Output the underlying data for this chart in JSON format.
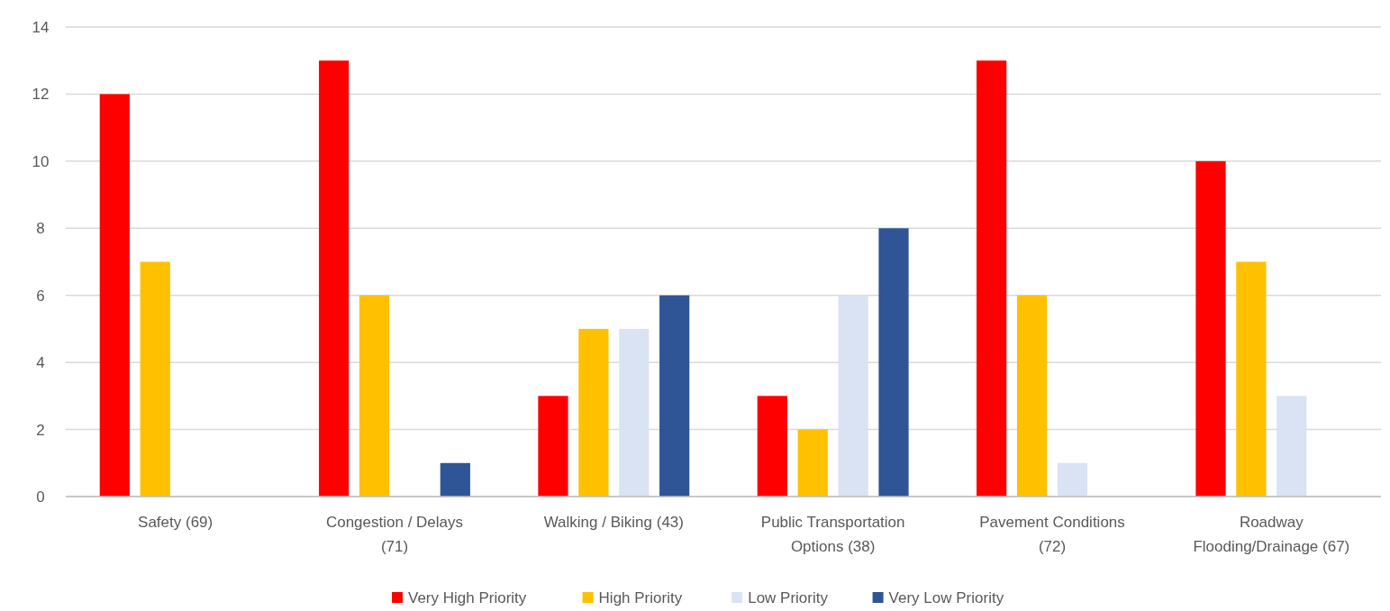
{
  "chart_data": {
    "type": "bar",
    "categories": [
      "Safety (69)",
      "Congestion / Delays (71)",
      "Walking / Biking (43)",
      "Public Transportation Options (38)",
      "Pavement Conditions (72)",
      "Roadway Flooding/Drainage (67)"
    ],
    "series": [
      {
        "name": "Very High Priority",
        "color": "#ff0000",
        "values": [
          12,
          13,
          3,
          3,
          13,
          10
        ]
      },
      {
        "name": "High Priority",
        "color": "#ffc000",
        "values": [
          7,
          6,
          5,
          2,
          6,
          7
        ]
      },
      {
        "name": "Low Priority",
        "color": "#dae3f3",
        "values": [
          0,
          0,
          5,
          6,
          1,
          3
        ]
      },
      {
        "name": "Very Low Priority",
        "color": "#2f5597",
        "values": [
          0,
          1,
          6,
          8,
          0,
          0
        ]
      }
    ],
    "ylim": [
      0,
      14
    ],
    "yticks": [
      0,
      2,
      4,
      6,
      8,
      10,
      12,
      14
    ],
    "grid": "y",
    "legend": "bottom"
  }
}
